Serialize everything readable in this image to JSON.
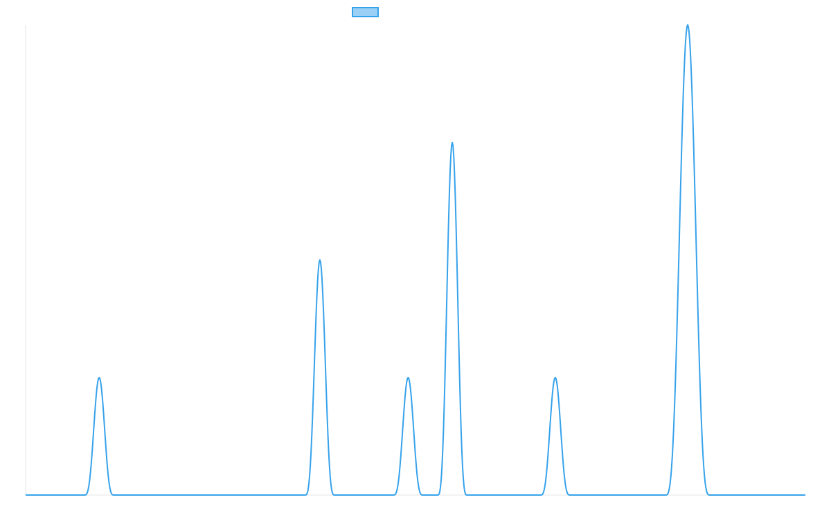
{
  "chart_data": {
    "type": "line",
    "title": "",
    "xlabel": "",
    "ylabel": "",
    "legend": {
      "position": "top",
      "series_name": ""
    },
    "grid": false,
    "x_range": [
      0,
      1060
    ],
    "ylim": [
      0,
      100
    ],
    "series": [
      {
        "name": "",
        "color": "#36a2eb",
        "fill_color": "#9ad0f5",
        "baseline": 0,
        "peaks": [
          {
            "center": 100,
            "value": 25,
            "half_width": 20
          },
          {
            "center": 400,
            "value": 50,
            "half_width": 20
          },
          {
            "center": 520,
            "value": 25,
            "half_width": 20
          },
          {
            "center": 580,
            "value": 75,
            "half_width": 20
          },
          {
            "center": 720,
            "value": 25,
            "half_width": 20
          },
          {
            "center": 900,
            "value": 100,
            "half_width": 30
          }
        ]
      }
    ]
  }
}
